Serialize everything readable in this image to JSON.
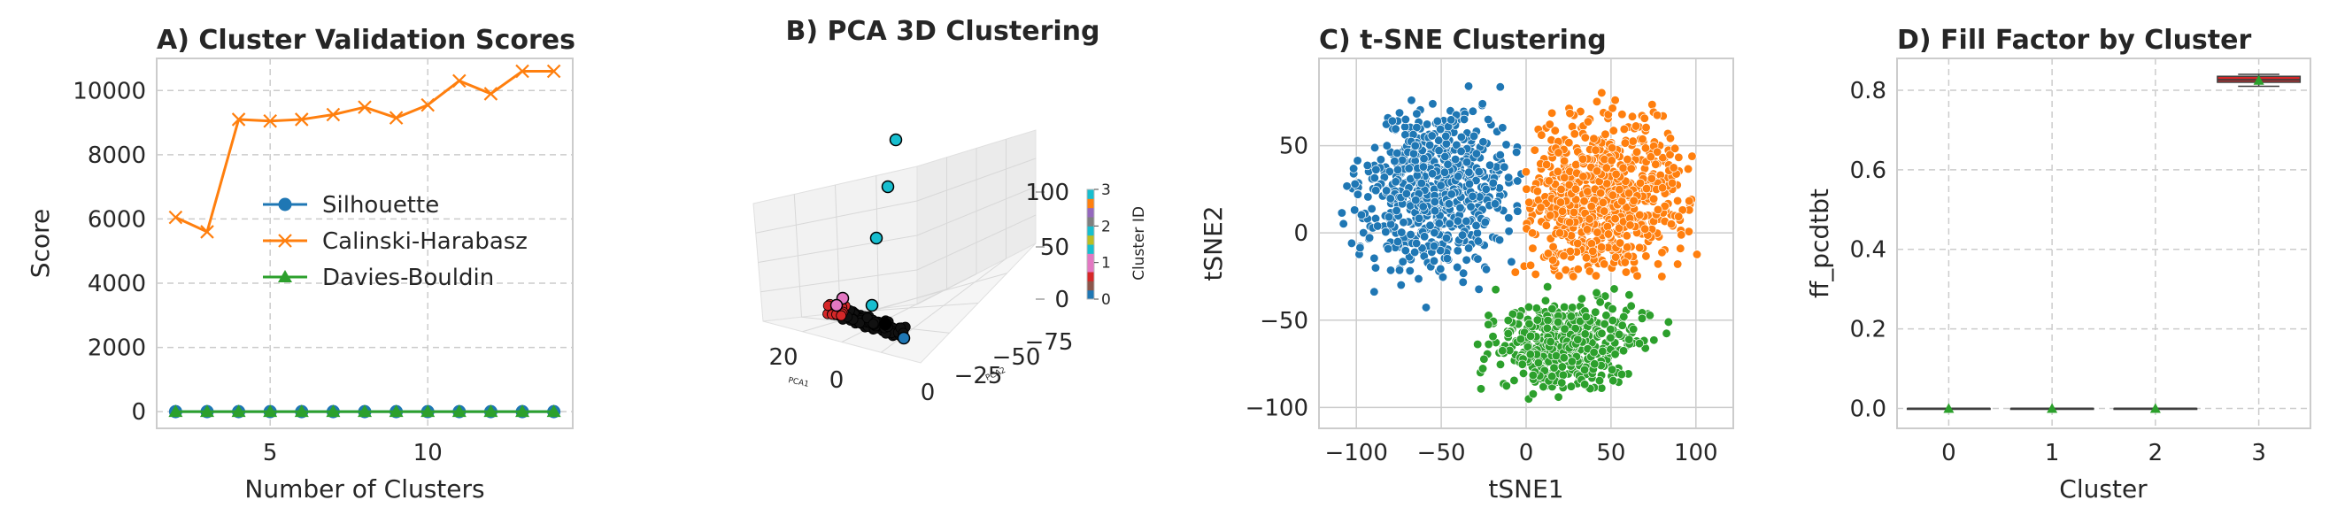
{
  "colors": {
    "blue": "#1f77b4",
    "orange": "#ff7f0e",
    "green": "#2ca02c",
    "pink": "#e377c2",
    "cyan": "#17becf",
    "red": "#d62728",
    "grid": "#cccccc",
    "spine": "#cccccc"
  },
  "chart_data": [
    {
      "panel": "A",
      "type": "line",
      "title": "A) Cluster Validation Scores",
      "xlabel": "Number of Clusters",
      "ylabel": "Score",
      "xlim": [
        1.4,
        14.6
      ],
      "ylim": [
        -520,
        11000
      ],
      "xticks": [
        5,
        10
      ],
      "yticks": [
        0,
        2000,
        4000,
        6000,
        8000,
        10000
      ],
      "grid": true,
      "legend_position": "center",
      "x": [
        2,
        3,
        4,
        5,
        6,
        7,
        8,
        9,
        10,
        11,
        12,
        13,
        14
      ],
      "series": [
        {
          "name": "Silhouette",
          "marker": "circle",
          "color": "#1f77b4",
          "values": [
            0.45,
            0.42,
            0.4,
            0.39,
            0.38,
            0.37,
            0.36,
            0.35,
            0.35,
            0.34,
            0.33,
            0.33,
            0.32
          ]
        },
        {
          "name": "Calinski-Harabasz",
          "marker": "x",
          "color": "#ff7f0e",
          "values": [
            6050,
            5600,
            9100,
            9050,
            9100,
            9250,
            9480,
            9150,
            9550,
            10300,
            9900,
            10600,
            10600
          ]
        },
        {
          "name": "Davies-Bouldin",
          "marker": "triangle",
          "color": "#2ca02c",
          "values": [
            0.9,
            1.0,
            1.0,
            1.05,
            1.05,
            1.1,
            1.1,
            1.1,
            1.15,
            1.15,
            1.2,
            1.2,
            1.2
          ]
        }
      ]
    },
    {
      "panel": "B",
      "type": "scatter",
      "title": "B) PCA 3D Clustering",
      "xlabel": "PCA1",
      "ylabel": "PCA2",
      "zlabel": "",
      "xticks": [
        20,
        0
      ],
      "yticks": [
        0,
        -25,
        -50,
        -75
      ],
      "zticks": [
        0,
        50,
        100
      ],
      "colorbar_label": "Cluster ID",
      "colorbar_ticks": [
        0,
        1,
        2,
        3
      ],
      "points": [
        {
          "cluster": 3,
          "x": 0,
          "y": -10,
          "z": 105
        },
        {
          "cluster": 3,
          "x": 2,
          "y": -10,
          "z": 75
        },
        {
          "cluster": 3,
          "x": 6,
          "y": -10,
          "z": 45
        },
        {
          "cluster": 3,
          "x": 10,
          "y": -10,
          "z": 20
        },
        {
          "cluster": 2,
          "x": 22,
          "y": -5,
          "z": 3
        },
        {
          "cluster": 2,
          "x": 20,
          "y": -8,
          "z": 2
        },
        {
          "cluster": 1,
          "x": 5,
          "y": -20,
          "z": 0
        },
        {
          "cluster": 0,
          "x": -8,
          "y": -20,
          "z": 0
        }
      ]
    },
    {
      "panel": "C",
      "type": "scatter",
      "title": "C) t-SNE Clustering",
      "xlabel": "tSNE1",
      "ylabel": "tSNE2",
      "xlim": [
        -122,
        122
      ],
      "ylim": [
        -112,
        100
      ],
      "xticks": [
        -100,
        -50,
        0,
        50,
        100
      ],
      "yticks": [
        -100,
        -50,
        0,
        50
      ],
      "grid": true,
      "clusters": [
        {
          "cluster": 0,
          "color": "#1f77b4",
          "region": "upper-left"
        },
        {
          "cluster": 1,
          "color": "#ff7f0e",
          "region": "right"
        },
        {
          "cluster": 2,
          "color": "#2ca02c",
          "region": "bottom"
        }
      ]
    },
    {
      "panel": "D",
      "type": "box",
      "title": "D) Fill Factor by Cluster",
      "xlabel": "Cluster",
      "ylabel": "ff_pcdtbt",
      "categories": [
        "0",
        "1",
        "2",
        "3"
      ],
      "ylim": [
        -0.05,
        0.88
      ],
      "yticks": [
        0.0,
        0.2,
        0.4,
        0.6,
        0.8
      ],
      "grid": true,
      "boxes": [
        {
          "cluster": "0",
          "min": 0.0,
          "q1": 0.0,
          "median": 0.0,
          "q3": 0.0,
          "max": 0.0,
          "mean": 0.0
        },
        {
          "cluster": "1",
          "min": 0.0,
          "q1": 0.0,
          "median": 0.0,
          "q3": 0.0,
          "max": 0.0,
          "mean": 0.0
        },
        {
          "cluster": "2",
          "min": 0.0,
          "q1": 0.0,
          "median": 0.0,
          "q3": 0.0,
          "max": 0.0,
          "mean": 0.0
        },
        {
          "cluster": "3",
          "min": 0.81,
          "q1": 0.82,
          "median": 0.826,
          "q3": 0.835,
          "max": 0.84,
          "mean": 0.825
        }
      ]
    }
  ]
}
